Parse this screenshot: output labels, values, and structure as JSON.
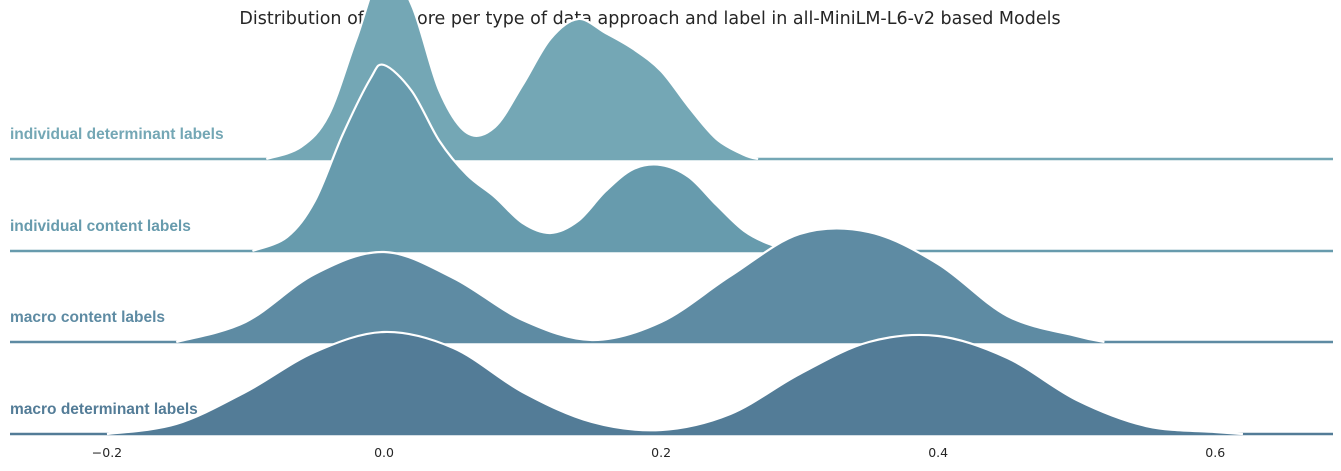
{
  "chart_data": {
    "type": "area",
    "title": "Distribution of F1 Score per type of data approach and label in all-MiniLM-L6-v2 based Models",
    "xlabel": "",
    "ylabel": "",
    "xlim": [
      -0.27,
      0.685
    ],
    "x_ticks": [
      -0.2,
      0.0,
      0.2,
      0.4,
      0.6
    ],
    "x_tick_labels": [
      "−0.2",
      "0.0",
      "0.2",
      "0.4",
      "0.6"
    ],
    "grid": false,
    "series": [
      {
        "name": "individual determinant labels",
        "color": "#74a7b5",
        "x": [
          -0.085,
          -0.06,
          -0.04,
          -0.02,
          0.0,
          0.02,
          0.04,
          0.06,
          0.08,
          0.1,
          0.12,
          0.14,
          0.16,
          0.18,
          0.2,
          0.22,
          0.24,
          0.26,
          0.27
        ],
        "density": [
          0.0,
          0.06,
          0.22,
          0.6,
          0.96,
          0.77,
          0.34,
          0.13,
          0.16,
          0.37,
          0.6,
          0.7,
          0.63,
          0.55,
          0.44,
          0.26,
          0.1,
          0.02,
          0.0
        ]
      },
      {
        "name": "individual content labels",
        "color": "#679bad",
        "x": [
          -0.095,
          -0.07,
          -0.05,
          -0.03,
          -0.01,
          0.0,
          0.02,
          0.04,
          0.06,
          0.08,
          0.1,
          0.12,
          0.14,
          0.16,
          0.18,
          0.2,
          0.22,
          0.24,
          0.26,
          0.28,
          0.3
        ],
        "density": [
          0.0,
          0.07,
          0.25,
          0.58,
          0.86,
          0.93,
          0.8,
          0.55,
          0.38,
          0.27,
          0.14,
          0.09,
          0.15,
          0.3,
          0.41,
          0.43,
          0.37,
          0.23,
          0.1,
          0.03,
          0.0
        ]
      },
      {
        "name": "macro content labels",
        "color": "#5e8ba3",
        "x": [
          -0.15,
          -0.1,
          -0.05,
          0.0,
          0.05,
          0.1,
          0.15,
          0.2,
          0.25,
          0.3,
          0.35,
          0.4,
          0.45,
          0.5,
          0.52
        ],
        "density": [
          0.0,
          0.1,
          0.34,
          0.45,
          0.32,
          0.11,
          0.01,
          0.1,
          0.33,
          0.54,
          0.55,
          0.39,
          0.13,
          0.03,
          0.0
        ]
      },
      {
        "name": "macro determinant labels",
        "color": "#537c97",
        "x": [
          -0.2,
          -0.15,
          -0.1,
          -0.05,
          0.0,
          0.05,
          0.1,
          0.15,
          0.2,
          0.25,
          0.3,
          0.35,
          0.4,
          0.45,
          0.5,
          0.55,
          0.6,
          0.62
        ],
        "density": [
          0.0,
          0.05,
          0.21,
          0.41,
          0.51,
          0.43,
          0.21,
          0.06,
          0.02,
          0.1,
          0.3,
          0.46,
          0.49,
          0.38,
          0.17,
          0.04,
          0.01,
          0.0
        ]
      }
    ]
  }
}
